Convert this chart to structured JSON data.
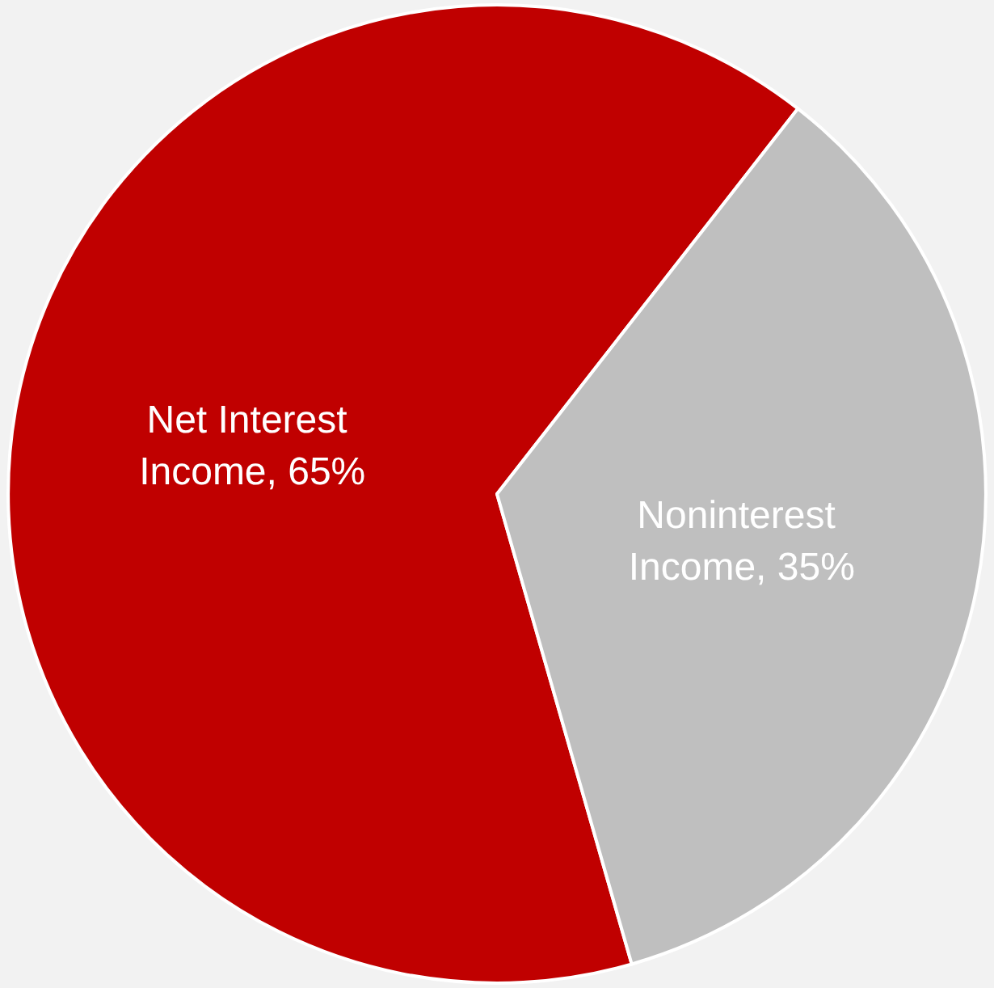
{
  "chart_data": {
    "type": "pie",
    "categories": [
      "Net Interest Income",
      "Noninterest Income"
    ],
    "values": [
      65,
      35
    ],
    "value_labels": [
      ", 65%",
      ", 35%"
    ],
    "colors": [
      "#c00000",
      "#bfbfbf"
    ]
  }
}
